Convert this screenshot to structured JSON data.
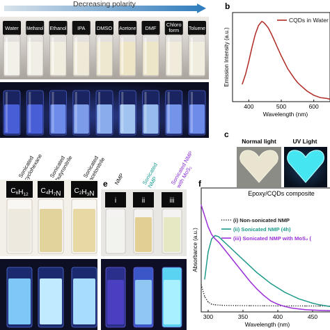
{
  "panel_labels": [
    "b",
    "c",
    "e",
    "f"
  ],
  "panel_a": {
    "header": "Decreasing polarity",
    "solvents": [
      {
        "lines": [
          "Water"
        ],
        "fill": 0.0
      },
      {
        "lines": [
          "Methanol"
        ],
        "fill": 0.05
      },
      {
        "lines": [
          "Ethanol"
        ],
        "fill": 0.15
      },
      {
        "lines": [
          "IPA"
        ],
        "fill": 0.25
      },
      {
        "lines": [
          "DMSO"
        ],
        "fill": 0.35
      },
      {
        "lines": [
          "Acetone"
        ],
        "fill": 0.5
      },
      {
        "lines": [
          "DMF"
        ],
        "fill": 0.45
      },
      {
        "lines": [
          "Chloro",
          "form"
        ],
        "fill": 0.2
      },
      {
        "lines": [
          "Toluene"
        ],
        "fill": 0.15
      }
    ]
  },
  "panel_d": {
    "labels": [
      [
        "Sonicated",
        "cyclohexane"
      ],
      [
        "Sonicated",
        "butyronitrile"
      ],
      [
        "Sonicated",
        "acetonitrile"
      ]
    ],
    "formulas": [
      {
        "pre": "C",
        "s1": "6",
        "mid": "H",
        "s2": "12",
        "post": ""
      },
      {
        "pre": "C",
        "s1": "4",
        "mid": "H",
        "s2": "7",
        "post": "N"
      },
      {
        "pre": "C",
        "s1": "2",
        "mid": "H",
        "s2": "3",
        "post": "N"
      }
    ]
  },
  "panel_c": {
    "normal_label": "Normal light",
    "uv_label": "UV Light",
    "caption": "Epoxy/CQDs composite"
  },
  "panel_e": {
    "labels": [
      [
        "NMP"
      ],
      [
        "Sonicated",
        "NMP"
      ],
      [
        "Sonicated NMP",
        "with MoS₂"
      ]
    ],
    "roman": [
      "i",
      "ii",
      "iii"
    ],
    "label_colors": [
      "#111111",
      "#1a9c95",
      "#8a2bd6"
    ]
  },
  "chart_data": [
    {
      "type": "line",
      "panel": "b",
      "xlabel": "Wavelength (nm)",
      "ylabel": "Emission Intensity (a.u.)",
      "xlim": [
        350,
        650
      ],
      "xticks": [
        400,
        500,
        600
      ],
      "legend": "top-right",
      "series": [
        {
          "name": "CQDs in Water",
          "color": "#b02a24",
          "x": [
            380,
            390,
            400,
            410,
            420,
            430,
            440,
            445,
            450,
            460,
            470,
            480,
            490,
            500,
            510,
            520,
            530,
            540,
            550,
            560,
            580,
            600,
            620,
            640,
            650
          ],
          "y": [
            0.22,
            0.34,
            0.5,
            0.68,
            0.84,
            0.95,
            1.0,
            0.99,
            0.97,
            0.92,
            0.84,
            0.75,
            0.66,
            0.57,
            0.49,
            0.41,
            0.35,
            0.29,
            0.24,
            0.2,
            0.13,
            0.08,
            0.05,
            0.04,
            0.03
          ]
        }
      ]
    },
    {
      "type": "line",
      "panel": "f",
      "xlabel": "Wavelength (nm)",
      "ylabel": "Absorbance (a.u.)",
      "xlim": [
        290,
        480
      ],
      "xticks": [
        300,
        350,
        400,
        450
      ],
      "legend": "top-right",
      "series": [
        {
          "name": "(i) Non-sonicated NMP",
          "color": "#222222",
          "style": "dotted",
          "x": [
            290,
            295,
            300,
            305,
            310,
            320,
            340,
            360,
            380,
            400,
            420,
            440,
            460,
            480
          ],
          "y": [
            0.25,
            0.14,
            0.09,
            0.07,
            0.065,
            0.06,
            0.058,
            0.057,
            0.056,
            0.055,
            0.055,
            0.054,
            0.054,
            0.053
          ]
        },
        {
          "name": "(ii) Sonicated  NMP (4h)",
          "color": "#1f9a8a",
          "style": "solid",
          "x": [
            295,
            300,
            305,
            310,
            315,
            320,
            330,
            340,
            350,
            360,
            370,
            380,
            390,
            400,
            410,
            420,
            430,
            440,
            450,
            460,
            470,
            480
          ],
          "y": [
            0.3,
            0.55,
            0.67,
            0.7,
            0.69,
            0.66,
            0.6,
            0.54,
            0.48,
            0.42,
            0.36,
            0.31,
            0.26,
            0.22,
            0.18,
            0.15,
            0.12,
            0.1,
            0.08,
            0.065,
            0.055,
            0.045
          ]
        },
        {
          "name": "(iii) Sonicated NMP with MoS₂ (",
          "color": "#9b30d9",
          "style": "solid",
          "x": [
            290,
            295,
            300,
            305,
            310,
            315,
            320,
            330,
            340,
            350,
            360,
            370,
            380,
            390,
            400,
            410,
            420,
            440,
            460,
            480
          ],
          "y": [
            0.98,
            0.88,
            0.78,
            0.71,
            0.67,
            0.64,
            0.6,
            0.52,
            0.44,
            0.36,
            0.28,
            0.21,
            0.15,
            0.1,
            0.07,
            0.05,
            0.035,
            0.02,
            0.015,
            0.01
          ]
        }
      ]
    }
  ]
}
